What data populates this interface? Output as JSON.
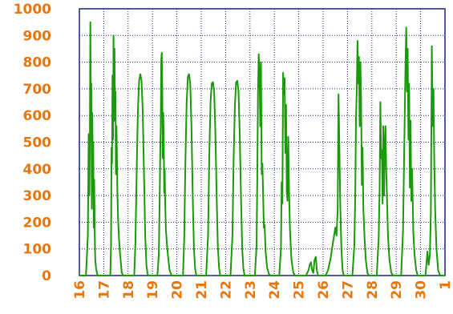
{
  "chart_data": {
    "type": "line",
    "title": "",
    "xlabel": "",
    "ylabel": "",
    "ylim": [
      0,
      1000
    ],
    "xlim": [
      16,
      31
    ],
    "grid": true,
    "yticks": [
      "0",
      "100",
      "200",
      "300",
      "400",
      "500",
      "600",
      "700",
      "800",
      "900",
      "1000"
    ],
    "xticks": [
      "16",
      "17",
      "18",
      "19",
      "20",
      "21",
      "22",
      "23",
      "24",
      "25",
      "26",
      "27",
      "28",
      "29",
      "30",
      "1"
    ],
    "colors": {
      "series": "#1a9a0a",
      "tick_text": "#e8760e",
      "grid": "#1a237e"
    },
    "series": [
      {
        "name": "",
        "x": [
          16.0,
          16.27,
          16.35,
          16.38,
          16.41,
          16.43,
          16.45,
          16.47,
          16.49,
          16.51,
          16.53,
          16.55,
          16.57,
          16.59,
          16.61,
          16.63,
          16.65,
          16.68,
          16.72,
          16.75,
          16.8,
          16.85,
          17.2,
          17.27,
          17.3,
          17.32,
          17.34,
          17.36,
          17.38,
          17.4,
          17.42,
          17.44,
          17.46,
          17.48,
          17.5,
          17.52,
          17.54,
          17.56,
          17.58,
          17.6,
          17.63,
          17.66,
          17.7,
          17.74,
          17.8,
          17.85,
          18.25,
          18.3,
          18.35,
          18.4,
          18.45,
          18.5,
          18.55,
          18.6,
          18.65,
          18.7,
          18.75,
          18.8,
          18.85,
          19.2,
          19.26,
          19.3,
          19.32,
          19.34,
          19.36,
          19.38,
          19.4,
          19.42,
          19.44,
          19.46,
          19.48,
          19.5,
          19.52,
          19.55,
          19.6,
          19.65,
          19.7,
          19.78,
          19.85,
          20.25,
          20.3,
          20.35,
          20.4,
          20.45,
          20.5,
          20.55,
          20.6,
          20.65,
          20.7,
          20.75,
          20.8,
          20.85,
          21.2,
          21.28,
          21.33,
          21.38,
          21.43,
          21.48,
          21.53,
          21.58,
          21.63,
          21.68,
          21.73,
          21.78,
          21.85,
          22.2,
          22.28,
          22.33,
          22.38,
          22.43,
          22.48,
          22.53,
          22.58,
          22.63,
          22.68,
          22.73,
          22.78,
          22.85,
          23.2,
          23.27,
          23.3,
          23.33,
          23.36,
          23.39,
          23.42,
          23.45,
          23.48,
          23.51,
          23.54,
          23.57,
          23.6,
          23.64,
          23.7,
          23.78,
          23.85,
          24.2,
          24.27,
          24.3,
          24.33,
          24.36,
          24.39,
          24.42,
          24.45,
          24.48,
          24.51,
          24.54,
          24.57,
          24.6,
          24.64,
          24.7,
          24.78,
          24.85,
          25.2,
          25.3,
          25.35,
          25.4,
          25.45,
          25.5,
          25.55,
          25.6,
          25.65,
          25.7,
          25.75,
          25.8,
          25.85,
          26.1,
          26.2,
          26.3,
          26.38,
          26.45,
          26.5,
          26.55,
          26.6,
          26.63,
          26.66,
          26.7,
          26.75,
          26.8,
          26.85,
          27.2,
          27.28,
          27.32,
          27.35,
          27.38,
          27.41,
          27.44,
          27.47,
          27.5,
          27.53,
          27.56,
          27.59,
          27.62,
          27.65,
          27.7,
          27.75,
          27.82,
          27.88,
          28.2,
          28.28,
          28.32,
          28.35,
          28.38,
          28.41,
          28.44,
          28.47,
          28.5,
          28.53,
          28.56,
          28.59,
          28.62,
          28.66,
          28.72,
          28.8,
          28.88,
          29.2,
          29.28,
          29.32,
          29.35,
          29.38,
          29.41,
          29.44,
          29.47,
          29.5,
          29.53,
          29.56,
          29.59,
          29.62,
          29.65,
          29.7,
          29.75,
          29.82,
          29.88,
          30.2,
          30.28,
          30.33,
          30.38,
          30.42,
          30.46,
          30.5,
          30.53,
          30.56,
          30.6,
          30.65,
          30.72,
          30.8,
          31.0
        ],
        "y": [
          0,
          0,
          150,
          530,
          300,
          520,
          950,
          600,
          720,
          250,
          610,
          420,
          500,
          180,
          360,
          150,
          60,
          30,
          10,
          0,
          0,
          0,
          0,
          0,
          120,
          480,
          420,
          750,
          510,
          900,
          580,
          850,
          620,
          690,
          380,
          560,
          470,
          310,
          240,
          190,
          130,
          90,
          50,
          10,
          0,
          0,
          0,
          120,
          380,
          620,
          730,
          755,
          730,
          620,
          380,
          150,
          40,
          5,
          0,
          0,
          80,
          320,
          470,
          560,
          810,
          835,
          700,
          440,
          610,
          520,
          310,
          400,
          280,
          170,
          110,
          60,
          20,
          0,
          0,
          0,
          130,
          420,
          650,
          745,
          755,
          720,
          560,
          300,
          100,
          25,
          0,
          0,
          0,
          150,
          450,
          650,
          720,
          725,
          690,
          540,
          300,
          110,
          30,
          0,
          0,
          0,
          150,
          440,
          640,
          725,
          730,
          690,
          530,
          290,
          100,
          25,
          0,
          0,
          0,
          110,
          370,
          690,
          830,
          760,
          560,
          800,
          380,
          420,
          300,
          180,
          190,
          90,
          30,
          5,
          0,
          0,
          100,
          350,
          270,
          760,
          680,
          740,
          460,
          640,
          310,
          280,
          520,
          340,
          170,
          60,
          10,
          0,
          0,
          0,
          10,
          20,
          40,
          50,
          20,
          10,
          60,
          70,
          15,
          0,
          0,
          0,
          20,
          60,
          110,
          150,
          180,
          150,
          250,
          680,
          520,
          280,
          100,
          20,
          0,
          0,
          110,
          300,
          590,
          700,
          880,
          720,
          820,
          560,
          800,
          660,
          340,
          480,
          250,
          140,
          60,
          10,
          0,
          0,
          140,
          330,
          650,
          440,
          470,
          270,
          560,
          300,
          480,
          560,
          400,
          300,
          150,
          60,
          10,
          0,
          0,
          170,
          420,
          600,
          800,
          930,
          690,
          850,
          510,
          720,
          330,
          580,
          280,
          400,
          160,
          80,
          20,
          0,
          0,
          90,
          40,
          80,
          240,
          860,
          560,
          700,
          430,
          240,
          100,
          20,
          0,
          0
        ]
      }
    ]
  }
}
